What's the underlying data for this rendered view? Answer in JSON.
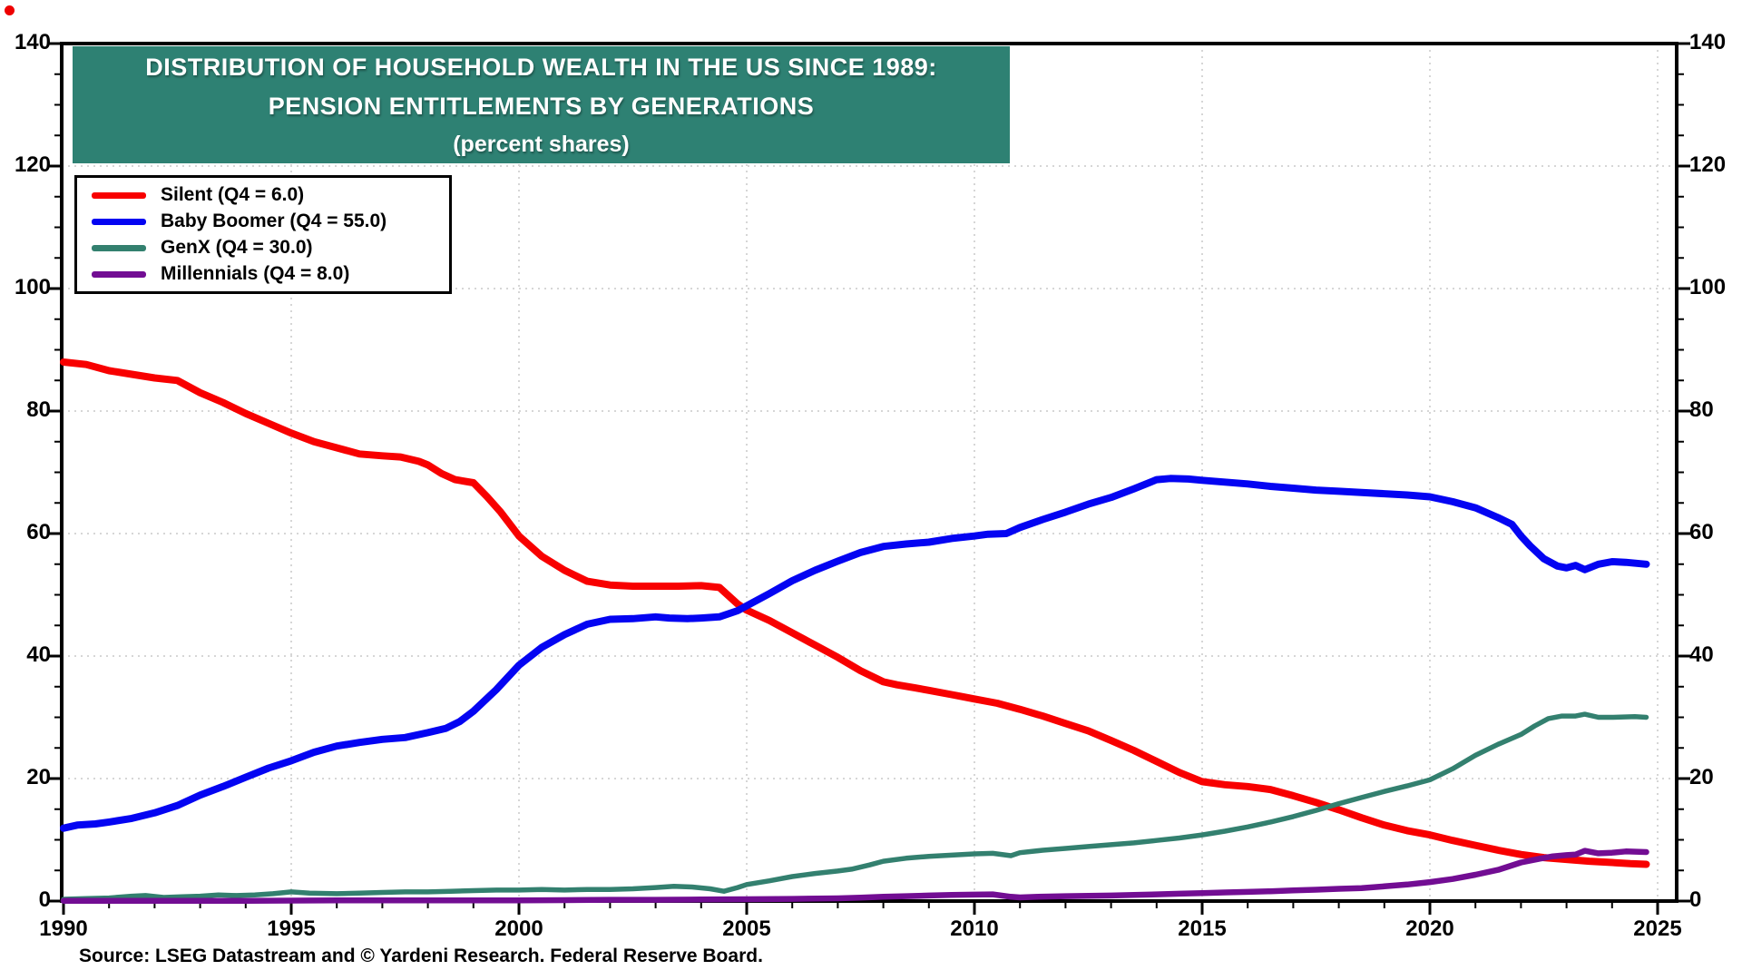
{
  "page": {
    "corner_dot_color": "#ee0000",
    "background": "#ffffff"
  },
  "title": {
    "line1": "DISTRIBUTION OF HOUSEHOLD WEALTH IN THE US SINCE 1989:",
    "line2": "PENSION ENTITLEMENTS BY GENERATIONS",
    "line3": "(percent shares)",
    "bg_color": "#2E8173",
    "text_color": "#ffffff"
  },
  "source": {
    "text": "Source: LSEG Datastream and © Yardeni Research. Federal Reserve Board."
  },
  "chart_data": {
    "type": "line",
    "title": "DISTRIBUTION OF HOUSEHOLD WEALTH IN THE US SINCE 1989: PENSION ENTITLEMENTS BY GENERATIONS (percent shares)",
    "xlabel": "",
    "ylabel": "",
    "xlim": [
      1990,
      2025.45
    ],
    "ylim": [
      0,
      140
    ],
    "x_ticks_major": [
      1990,
      1995,
      2000,
      2005,
      2010,
      2015,
      2020,
      2025
    ],
    "x_minor_step": 1,
    "y_ticks_major": [
      0,
      20,
      40,
      60,
      80,
      100,
      120,
      140
    ],
    "y_minor_step": 5,
    "grid": {
      "on": true,
      "color": "#d6d6d6",
      "style": "dotted",
      "vertical_years": [
        1995,
        2000,
        2005,
        2010,
        2015,
        2020,
        2025
      ],
      "horizontal_values": [
        20,
        40,
        60,
        80,
        100,
        120
      ]
    },
    "legend_position": "upper-left",
    "frame_color": "#000000",
    "series": [
      {
        "name": "Silent",
        "legend_label": "Silent (Q4 = 6.0)",
        "color": "#f80000",
        "width": 8,
        "points": [
          [
            1990,
            88
          ],
          [
            1990.5,
            87.6
          ],
          [
            1991,
            86.6
          ],
          [
            1991.5,
            86
          ],
          [
            1992,
            85.4
          ],
          [
            1992.5,
            85
          ],
          [
            1993,
            83
          ],
          [
            1993.5,
            81.4
          ],
          [
            1994,
            79.6
          ],
          [
            1994.5,
            78
          ],
          [
            1995,
            76.4
          ],
          [
            1995.5,
            75
          ],
          [
            1996,
            74
          ],
          [
            1996.5,
            73
          ],
          [
            1997,
            72.7
          ],
          [
            1997.4,
            72.5
          ],
          [
            1997.8,
            71.8
          ],
          [
            1998,
            71.2
          ],
          [
            1998.3,
            69.8
          ],
          [
            1998.6,
            68.8
          ],
          [
            1999,
            68.3
          ],
          [
            1999.3,
            66
          ],
          [
            1999.6,
            63.5
          ],
          [
            2000,
            59.6
          ],
          [
            2000.5,
            56.3
          ],
          [
            2001,
            54
          ],
          [
            2001.5,
            52.2
          ],
          [
            2002,
            51.6
          ],
          [
            2002.5,
            51.4
          ],
          [
            2003,
            51.4
          ],
          [
            2003.5,
            51.4
          ],
          [
            2004,
            51.5
          ],
          [
            2004.4,
            51.2
          ],
          [
            2004.8,
            48.5
          ],
          [
            2005,
            47.5
          ],
          [
            2005.5,
            45.8
          ],
          [
            2006,
            43.8
          ],
          [
            2006.5,
            41.8
          ],
          [
            2007,
            39.8
          ],
          [
            2007.5,
            37.6
          ],
          [
            2008,
            35.8
          ],
          [
            2008.3,
            35.3
          ],
          [
            2008.7,
            34.8
          ],
          [
            2009,
            34.4
          ],
          [
            2009.5,
            33.7
          ],
          [
            2010,
            33
          ],
          [
            2010.5,
            32.3
          ],
          [
            2011,
            31.3
          ],
          [
            2011.5,
            30.2
          ],
          [
            2012,
            29
          ],
          [
            2012.5,
            27.8
          ],
          [
            2013,
            26.2
          ],
          [
            2013.5,
            24.6
          ],
          [
            2014,
            22.8
          ],
          [
            2014.5,
            21
          ],
          [
            2015,
            19.5
          ],
          [
            2015.5,
            19
          ],
          [
            2016,
            18.7
          ],
          [
            2016.5,
            18.2
          ],
          [
            2017,
            17.2
          ],
          [
            2017.5,
            16.1
          ],
          [
            2018,
            14.9
          ],
          [
            2018.5,
            13.6
          ],
          [
            2019,
            12.4
          ],
          [
            2019.5,
            11.5
          ],
          [
            2020,
            10.8
          ],
          [
            2020.5,
            9.9
          ],
          [
            2021,
            9.1
          ],
          [
            2021.5,
            8.3
          ],
          [
            2022,
            7.6
          ],
          [
            2022.5,
            7.1
          ],
          [
            2023,
            6.8
          ],
          [
            2023.5,
            6.5
          ],
          [
            2024,
            6.3
          ],
          [
            2024.4,
            6.1
          ],
          [
            2024.75,
            6
          ]
        ]
      },
      {
        "name": "Baby Boomer",
        "legend_label": "Baby Boomer (Q4 = 55.0)",
        "color": "#0404f2",
        "width": 8,
        "points": [
          [
            1990,
            11.9
          ],
          [
            1990.3,
            12.4
          ],
          [
            1990.7,
            12.6
          ],
          [
            1991,
            12.9
          ],
          [
            1991.5,
            13.5
          ],
          [
            1992,
            14.4
          ],
          [
            1992.5,
            15.6
          ],
          [
            1993,
            17.3
          ],
          [
            1993.5,
            18.7
          ],
          [
            1994,
            20.2
          ],
          [
            1994.5,
            21.7
          ],
          [
            1995,
            22.9
          ],
          [
            1995.5,
            24.3
          ],
          [
            1996,
            25.3
          ],
          [
            1996.5,
            25.9
          ],
          [
            1997,
            26.4
          ],
          [
            1997.5,
            26.7
          ],
          [
            1998,
            27.5
          ],
          [
            1998.4,
            28.2
          ],
          [
            1998.7,
            29.3
          ],
          [
            1999,
            31
          ],
          [
            1999.5,
            34.5
          ],
          [
            2000,
            38.5
          ],
          [
            2000.5,
            41.4
          ],
          [
            2001,
            43.5
          ],
          [
            2001.5,
            45.2
          ],
          [
            2002,
            46
          ],
          [
            2002.5,
            46.1
          ],
          [
            2003,
            46.4
          ],
          [
            2003.3,
            46.2
          ],
          [
            2003.7,
            46.1
          ],
          [
            2004,
            46.2
          ],
          [
            2004.4,
            46.4
          ],
          [
            2004.8,
            47.4
          ],
          [
            2005,
            48.2
          ],
          [
            2005.5,
            50.2
          ],
          [
            2006,
            52.3
          ],
          [
            2006.5,
            54
          ],
          [
            2007,
            55.5
          ],
          [
            2007.5,
            56.9
          ],
          [
            2008,
            57.9
          ],
          [
            2008.5,
            58.3
          ],
          [
            2009,
            58.6
          ],
          [
            2009.5,
            59.2
          ],
          [
            2010,
            59.6
          ],
          [
            2010.3,
            59.9
          ],
          [
            2010.7,
            60
          ],
          [
            2011,
            61
          ],
          [
            2011.5,
            62.3
          ],
          [
            2012,
            63.5
          ],
          [
            2012.5,
            64.8
          ],
          [
            2013,
            65.9
          ],
          [
            2013.5,
            67.3
          ],
          [
            2014,
            68.8
          ],
          [
            2014.3,
            69
          ],
          [
            2014.7,
            68.9
          ],
          [
            2015,
            68.7
          ],
          [
            2015.5,
            68.4
          ],
          [
            2016,
            68.1
          ],
          [
            2016.5,
            67.7
          ],
          [
            2017,
            67.4
          ],
          [
            2017.5,
            67.1
          ],
          [
            2018,
            66.9
          ],
          [
            2018.5,
            66.7
          ],
          [
            2019,
            66.5
          ],
          [
            2019.5,
            66.3
          ],
          [
            2020,
            66
          ],
          [
            2020.5,
            65.2
          ],
          [
            2021,
            64.2
          ],
          [
            2021.5,
            62.6
          ],
          [
            2021.8,
            61.5
          ],
          [
            2022,
            59.6
          ],
          [
            2022.2,
            58
          ],
          [
            2022.5,
            55.9
          ],
          [
            2022.8,
            54.7
          ],
          [
            2023,
            54.4
          ],
          [
            2023.2,
            54.8
          ],
          [
            2023.4,
            54.1
          ],
          [
            2023.7,
            55
          ],
          [
            2024,
            55.4
          ],
          [
            2024.3,
            55.3
          ],
          [
            2024.75,
            55
          ]
        ]
      },
      {
        "name": "GenX",
        "legend_label": "GenX (Q4 = 30.0)",
        "color": "#33806F",
        "width": 5.5,
        "points": [
          [
            1990,
            0.3
          ],
          [
            1990.5,
            0.4
          ],
          [
            1991,
            0.5
          ],
          [
            1991.5,
            0.8
          ],
          [
            1991.8,
            0.9
          ],
          [
            1992.2,
            0.6
          ],
          [
            1992.6,
            0.7
          ],
          [
            1993,
            0.8
          ],
          [
            1993.4,
            1
          ],
          [
            1993.8,
            0.9
          ],
          [
            1994.2,
            1
          ],
          [
            1994.6,
            1.2
          ],
          [
            1995,
            1.5
          ],
          [
            1995.4,
            1.3
          ],
          [
            1996,
            1.2
          ],
          [
            1996.5,
            1.3
          ],
          [
            1997,
            1.4
          ],
          [
            1997.5,
            1.5
          ],
          [
            1998,
            1.5
          ],
          [
            1998.5,
            1.6
          ],
          [
            1999,
            1.7
          ],
          [
            1999.5,
            1.8
          ],
          [
            2000,
            1.8
          ],
          [
            2000.5,
            1.9
          ],
          [
            2001,
            1.8
          ],
          [
            2001.5,
            1.9
          ],
          [
            2002,
            1.9
          ],
          [
            2002.5,
            2
          ],
          [
            2003,
            2.2
          ],
          [
            2003.4,
            2.4
          ],
          [
            2003.8,
            2.3
          ],
          [
            2004.2,
            2
          ],
          [
            2004.5,
            1.6
          ],
          [
            2004.8,
            2.2
          ],
          [
            2005,
            2.7
          ],
          [
            2005.5,
            3.3
          ],
          [
            2006,
            4
          ],
          [
            2006.5,
            4.5
          ],
          [
            2007,
            4.9
          ],
          [
            2007.3,
            5.2
          ],
          [
            2007.7,
            5.9
          ],
          [
            2008,
            6.5
          ],
          [
            2008.5,
            7
          ],
          [
            2009,
            7.3
          ],
          [
            2009.5,
            7.5
          ],
          [
            2010,
            7.7
          ],
          [
            2010.4,
            7.8
          ],
          [
            2010.8,
            7.4
          ],
          [
            2011,
            7.9
          ],
          [
            2011.5,
            8.3
          ],
          [
            2012,
            8.6
          ],
          [
            2012.5,
            8.9
          ],
          [
            2013,
            9.2
          ],
          [
            2013.5,
            9.5
          ],
          [
            2014,
            9.9
          ],
          [
            2014.5,
            10.3
          ],
          [
            2015,
            10.8
          ],
          [
            2015.5,
            11.4
          ],
          [
            2016,
            12.1
          ],
          [
            2016.5,
            12.9
          ],
          [
            2017,
            13.8
          ],
          [
            2017.5,
            14.8
          ],
          [
            2018,
            15.9
          ],
          [
            2018.5,
            16.9
          ],
          [
            2019,
            17.9
          ],
          [
            2019.5,
            18.8
          ],
          [
            2020,
            19.8
          ],
          [
            2020.5,
            21.6
          ],
          [
            2021,
            23.8
          ],
          [
            2021.5,
            25.6
          ],
          [
            2022,
            27.2
          ],
          [
            2022.3,
            28.6
          ],
          [
            2022.6,
            29.8
          ],
          [
            2022.9,
            30.2
          ],
          [
            2023.2,
            30.2
          ],
          [
            2023.4,
            30.5
          ],
          [
            2023.7,
            30
          ],
          [
            2024,
            30
          ],
          [
            2024.5,
            30.1
          ],
          [
            2024.75,
            30
          ]
        ]
      },
      {
        "name": "Millennials",
        "legend_label": "Millennials (Q4 = 8.0)",
        "color": "#720D93",
        "width": 6.5,
        "points": [
          [
            1990,
            0.05
          ],
          [
            1992,
            0.05
          ],
          [
            1994,
            0.05
          ],
          [
            1996,
            0.1
          ],
          [
            1998,
            0.1
          ],
          [
            2000,
            0.1
          ],
          [
            2001,
            0.15
          ],
          [
            2002,
            0.2
          ],
          [
            2003,
            0.2
          ],
          [
            2004,
            0.25
          ],
          [
            2005,
            0.3
          ],
          [
            2006,
            0.35
          ],
          [
            2007,
            0.45
          ],
          [
            2007.5,
            0.55
          ],
          [
            2008,
            0.7
          ],
          [
            2008.5,
            0.8
          ],
          [
            2009,
            0.9
          ],
          [
            2009.5,
            1
          ],
          [
            2010,
            1.05
          ],
          [
            2010.4,
            1.1
          ],
          [
            2010.8,
            0.7
          ],
          [
            2011,
            0.6
          ],
          [
            2011.4,
            0.7
          ],
          [
            2012,
            0.8
          ],
          [
            2012.5,
            0.85
          ],
          [
            2013,
            0.9
          ],
          [
            2013.5,
            1
          ],
          [
            2014,
            1.1
          ],
          [
            2014.5,
            1.2
          ],
          [
            2015,
            1.3
          ],
          [
            2015.5,
            1.4
          ],
          [
            2016,
            1.5
          ],
          [
            2016.5,
            1.6
          ],
          [
            2017,
            1.75
          ],
          [
            2017.5,
            1.85
          ],
          [
            2018,
            2
          ],
          [
            2018.5,
            2.1
          ],
          [
            2019,
            2.4
          ],
          [
            2019.5,
            2.7
          ],
          [
            2020,
            3.1
          ],
          [
            2020.5,
            3.6
          ],
          [
            2021,
            4.3
          ],
          [
            2021.5,
            5.1
          ],
          [
            2022,
            6.3
          ],
          [
            2022.4,
            6.9
          ],
          [
            2022.7,
            7.3
          ],
          [
            2023,
            7.5
          ],
          [
            2023.2,
            7.6
          ],
          [
            2023.4,
            8.2
          ],
          [
            2023.7,
            7.8
          ],
          [
            2024,
            7.9
          ],
          [
            2024.3,
            8.1
          ],
          [
            2024.75,
            8
          ]
        ]
      }
    ]
  }
}
